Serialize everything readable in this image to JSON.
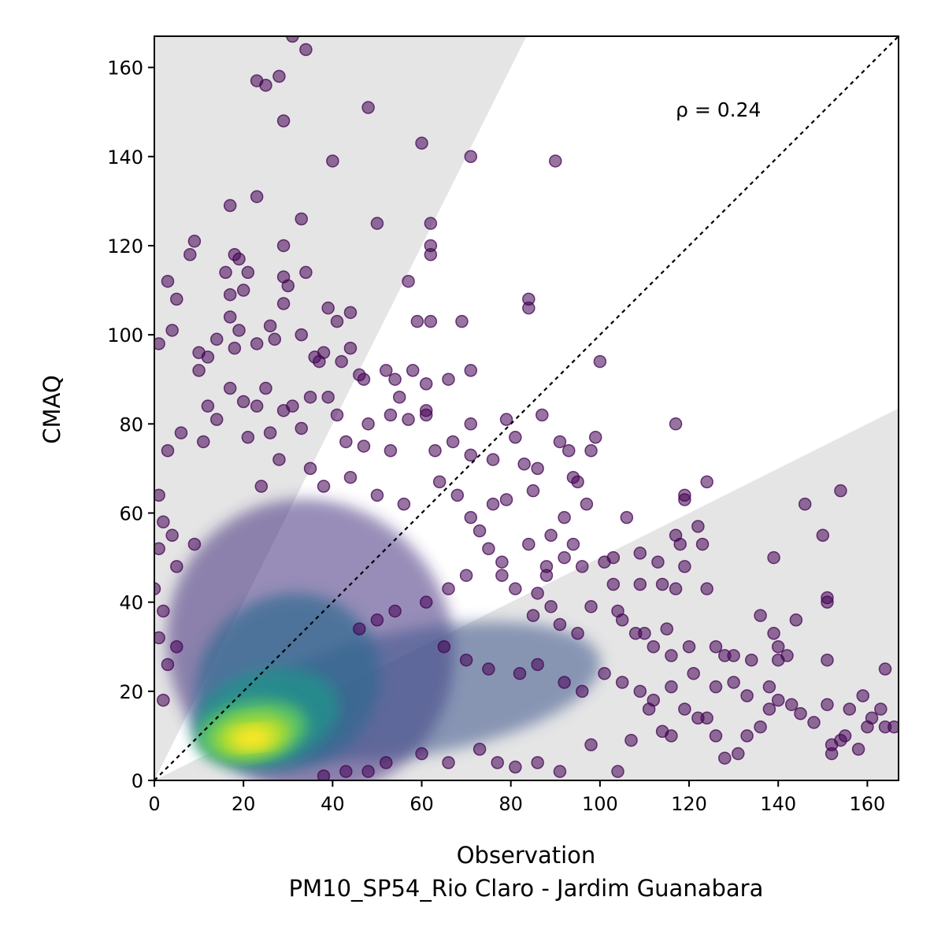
{
  "chart_data": {
    "type": "scatter",
    "title": "",
    "xlabel": "Observation",
    "subtitle": "PM10_SP54_Rio Claro - Jardim Guanabara",
    "ylabel": "CMAQ",
    "xlim": [
      0,
      167
    ],
    "ylim": [
      0,
      167
    ],
    "xticks": [
      0,
      20,
      40,
      60,
      80,
      100,
      120,
      140,
      160
    ],
    "yticks": [
      0,
      20,
      40,
      60,
      80,
      100,
      120,
      140,
      160
    ],
    "annotation": "ρ = 0.24",
    "grid": false,
    "reference_line": "1:1 dashed",
    "shaded_region": "outside factor-of-2 band",
    "colormap": "viridis density",
    "point_color": "#440154",
    "shade_color": "#e5e5e5",
    "points": [
      [
        31,
        167
      ],
      [
        23,
        157
      ],
      [
        25,
        156
      ],
      [
        28,
        158
      ],
      [
        34,
        164
      ],
      [
        48,
        151
      ],
      [
        29,
        148
      ],
      [
        60,
        143
      ],
      [
        71,
        140
      ],
      [
        90,
        139
      ],
      [
        40,
        139
      ],
      [
        23,
        131
      ],
      [
        17,
        129
      ],
      [
        33,
        126
      ],
      [
        50,
        125
      ],
      [
        62,
        125
      ],
      [
        9,
        121
      ],
      [
        8,
        118
      ],
      [
        18,
        118
      ],
      [
        19,
        117
      ],
      [
        29,
        120
      ],
      [
        62,
        120
      ],
      [
        62,
        118
      ],
      [
        3,
        112
      ],
      [
        16,
        114
      ],
      [
        21,
        114
      ],
      [
        29,
        113
      ],
      [
        34,
        114
      ],
      [
        57,
        112
      ],
      [
        30,
        111
      ],
      [
        20,
        110
      ],
      [
        17,
        109
      ],
      [
        5,
        108
      ],
      [
        84,
        108
      ],
      [
        84,
        106
      ],
      [
        29,
        107
      ],
      [
        39,
        106
      ],
      [
        44,
        105
      ],
      [
        4,
        101
      ],
      [
        17,
        104
      ],
      [
        26,
        102
      ],
      [
        27,
        99
      ],
      [
        23,
        98
      ],
      [
        59,
        103
      ],
      [
        62,
        103
      ],
      [
        69,
        103
      ],
      [
        41,
        103
      ],
      [
        19,
        101
      ],
      [
        14,
        99
      ],
      [
        10,
        96
      ],
      [
        12,
        95
      ],
      [
        1,
        98
      ],
      [
        18,
        97
      ],
      [
        33,
        100
      ],
      [
        38,
        96
      ],
      [
        44,
        97
      ],
      [
        42,
        94
      ],
      [
        46,
        91
      ],
      [
        52,
        92
      ],
      [
        58,
        92
      ],
      [
        66,
        90
      ],
      [
        71,
        92
      ],
      [
        100,
        94
      ],
      [
        10,
        92
      ],
      [
        36,
        95
      ],
      [
        37,
        94
      ],
      [
        47,
        90
      ],
      [
        61,
        89
      ],
      [
        61,
        83
      ],
      [
        54,
        90
      ],
      [
        55,
        86
      ],
      [
        35,
        86
      ],
      [
        39,
        86
      ],
      [
        25,
        88
      ],
      [
        17,
        88
      ],
      [
        12,
        84
      ],
      [
        14,
        81
      ],
      [
        20,
        85
      ],
      [
        23,
        84
      ],
      [
        29,
        83
      ],
      [
        31,
        84
      ],
      [
        41,
        82
      ],
      [
        48,
        80
      ],
      [
        53,
        82
      ],
      [
        57,
        81
      ],
      [
        61,
        82
      ],
      [
        71,
        80
      ],
      [
        79,
        81
      ],
      [
        81,
        77
      ],
      [
        87,
        82
      ],
      [
        91,
        76
      ],
      [
        99,
        77
      ],
      [
        6,
        78
      ],
      [
        3,
        74
      ],
      [
        11,
        76
      ],
      [
        21,
        77
      ],
      [
        26,
        78
      ],
      [
        33,
        79
      ],
      [
        43,
        76
      ],
      [
        47,
        75
      ],
      [
        53,
        74
      ],
      [
        63,
        74
      ],
      [
        67,
        76
      ],
      [
        71,
        73
      ],
      [
        76,
        72
      ],
      [
        83,
        71
      ],
      [
        86,
        70
      ],
      [
        93,
        74
      ],
      [
        98,
        74
      ],
      [
        94,
        68
      ],
      [
        95,
        67
      ],
      [
        97,
        62
      ],
      [
        85,
        65
      ],
      [
        79,
        63
      ],
      [
        76,
        62
      ],
      [
        71,
        59
      ],
      [
        92,
        59
      ],
      [
        106,
        59
      ],
      [
        117,
        80
      ],
      [
        119,
        64
      ],
      [
        119,
        63
      ],
      [
        124,
        67
      ],
      [
        122,
        57
      ],
      [
        117,
        55
      ],
      [
        118,
        53
      ],
      [
        109,
        51
      ],
      [
        113,
        49
      ],
      [
        119,
        48
      ],
      [
        123,
        53
      ],
      [
        101,
        49
      ],
      [
        103,
        50
      ],
      [
        96,
        48
      ],
      [
        92,
        50
      ],
      [
        88,
        48
      ],
      [
        78,
        49
      ],
      [
        84,
        53
      ],
      [
        94,
        53
      ],
      [
        89,
        55
      ],
      [
        103,
        44
      ],
      [
        109,
        44
      ],
      [
        114,
        44
      ],
      [
        117,
        43
      ],
      [
        124,
        43
      ],
      [
        98,
        39
      ],
      [
        104,
        38
      ],
      [
        105,
        36
      ],
      [
        95,
        33
      ],
      [
        91,
        35
      ],
      [
        85,
        37
      ],
      [
        89,
        39
      ],
      [
        108,
        33
      ],
      [
        110,
        33
      ],
      [
        115,
        34
      ],
      [
        120,
        30
      ],
      [
        116,
        28
      ],
      [
        112,
        30
      ],
      [
        126,
        30
      ],
      [
        128,
        28
      ],
      [
        130,
        28
      ],
      [
        134,
        27
      ],
      [
        136,
        37
      ],
      [
        140,
        30
      ],
      [
        142,
        28
      ],
      [
        144,
        36
      ],
      [
        146,
        62
      ],
      [
        150,
        55
      ],
      [
        154,
        65
      ],
      [
        151,
        41
      ],
      [
        151,
        40
      ],
      [
        139,
        50
      ],
      [
        139,
        33
      ],
      [
        140,
        27
      ],
      [
        151,
        27
      ],
      [
        164,
        25
      ],
      [
        159,
        19
      ],
      [
        163,
        16
      ],
      [
        166,
        12
      ],
      [
        160,
        12
      ],
      [
        155,
        10
      ],
      [
        154,
        9
      ],
      [
        152,
        8
      ],
      [
        152,
        6
      ],
      [
        158,
        7
      ],
      [
        164,
        12
      ],
      [
        161,
        14
      ],
      [
        156,
        16
      ],
      [
        151,
        17
      ],
      [
        148,
        13
      ],
      [
        145,
        15
      ],
      [
        143,
        17
      ],
      [
        140,
        18
      ],
      [
        138,
        16
      ],
      [
        136,
        12
      ],
      [
        133,
        10
      ],
      [
        131,
        6
      ],
      [
        128,
        5
      ],
      [
        126,
        10
      ],
      [
        124,
        14
      ],
      [
        122,
        14
      ],
      [
        119,
        16
      ],
      [
        116,
        10
      ],
      [
        114,
        11
      ],
      [
        111,
        16
      ],
      [
        107,
        9
      ],
      [
        104,
        2
      ],
      [
        98,
        8
      ],
      [
        91,
        2
      ],
      [
        86,
        4
      ],
      [
        81,
        3
      ],
      [
        77,
        4
      ],
      [
        73,
        7
      ],
      [
        66,
        4
      ],
      [
        60,
        6
      ],
      [
        52,
        4
      ],
      [
        48,
        2
      ],
      [
        43,
        2
      ],
      [
        38,
        1
      ],
      [
        0,
        43
      ],
      [
        1,
        32
      ],
      [
        2,
        38
      ],
      [
        1,
        64
      ],
      [
        2,
        58
      ],
      [
        1,
        52
      ],
      [
        5,
        48
      ],
      [
        9,
        53
      ],
      [
        4,
        55
      ],
      [
        3,
        26
      ],
      [
        5,
        30
      ],
      [
        2,
        18
      ],
      [
        24,
        66
      ],
      [
        28,
        72
      ],
      [
        35,
        70
      ],
      [
        38,
        66
      ],
      [
        44,
        68
      ],
      [
        50,
        64
      ],
      [
        56,
        62
      ],
      [
        64,
        67
      ],
      [
        68,
        64
      ],
      [
        73,
        56
      ],
      [
        75,
        52
      ],
      [
        78,
        46
      ],
      [
        81,
        43
      ],
      [
        86,
        42
      ],
      [
        88,
        46
      ],
      [
        70,
        46
      ],
      [
        66,
        43
      ],
      [
        61,
        40
      ],
      [
        54,
        38
      ],
      [
        50,
        36
      ],
      [
        46,
        34
      ],
      [
        65,
        30
      ],
      [
        70,
        27
      ],
      [
        75,
        25
      ],
      [
        82,
        24
      ],
      [
        86,
        26
      ],
      [
        92,
        22
      ],
      [
        96,
        20
      ],
      [
        101,
        24
      ],
      [
        105,
        22
      ],
      [
        109,
        20
      ],
      [
        112,
        18
      ],
      [
        116,
        21
      ],
      [
        121,
        24
      ],
      [
        126,
        21
      ],
      [
        130,
        22
      ],
      [
        133,
        19
      ],
      [
        138,
        21
      ]
    ]
  }
}
